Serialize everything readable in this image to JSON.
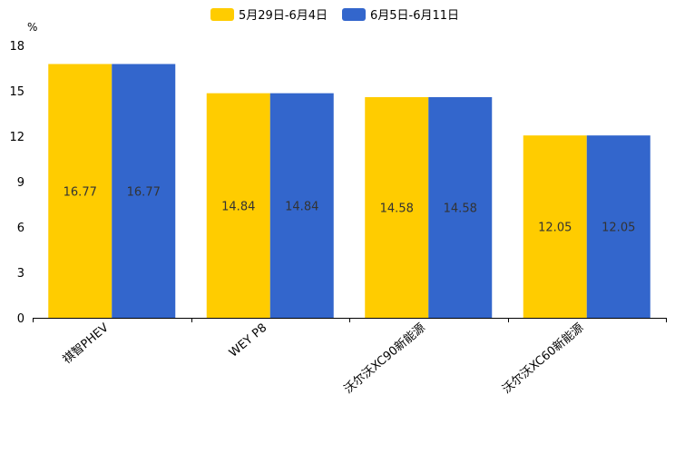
{
  "chart_data": {
    "type": "bar",
    "title": "",
    "xlabel": "",
    "ylabel": "%",
    "ylim": [
      0,
      18
    ],
    "yticks": [
      0,
      3,
      6,
      9,
      12,
      15,
      18
    ],
    "grid": false,
    "legend_position": "top-center",
    "categories": [
      "祺智PHEV",
      "WEY P8",
      "沃尔沃XC90新能源",
      "沃尔沃XC60新能源"
    ],
    "series": [
      {
        "name": "5月29日-6月4日",
        "color": "#ffcc00",
        "values": [
          16.77,
          14.84,
          14.58,
          12.05
        ]
      },
      {
        "name": "6月5日-6月11日",
        "color": "#3366cc",
        "values": [
          16.77,
          14.84,
          14.58,
          12.05
        ]
      }
    ],
    "label_color": "#333333",
    "axis_color": "#000000"
  }
}
